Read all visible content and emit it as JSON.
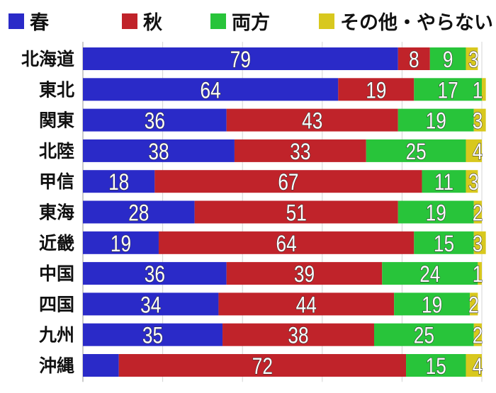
{
  "chart_data": {
    "type": "bar",
    "orientation": "horizontal",
    "stacked": true,
    "categories": [
      "北海道",
      "東北",
      "関東",
      "北陸",
      "甲信",
      "東海",
      "近畿",
      "中国",
      "四国",
      "九州",
      "沖縄"
    ],
    "series": [
      {
        "name": "春",
        "color": "#2a2ac8",
        "values": [
          79,
          64,
          36,
          38,
          18,
          28,
          19,
          36,
          34,
          35,
          9
        ]
      },
      {
        "name": "秋",
        "color": "#c0232a",
        "values": [
          8,
          19,
          43,
          33,
          67,
          51,
          64,
          39,
          44,
          38,
          72
        ]
      },
      {
        "name": "両方",
        "color": "#28c43a",
        "values": [
          9,
          17,
          19,
          25,
          11,
          19,
          15,
          24,
          19,
          25,
          15
        ]
      },
      {
        "name": "その他・やらない",
        "color": "#d8c81e",
        "values": [
          3,
          1,
          3,
          4,
          3,
          2,
          3,
          1,
          2,
          2,
          4
        ]
      }
    ],
    "hidden_labels": [
      [
        10,
        0
      ]
    ],
    "xlim": [
      0,
      100
    ],
    "grid": true,
    "legend_position": "top"
  }
}
